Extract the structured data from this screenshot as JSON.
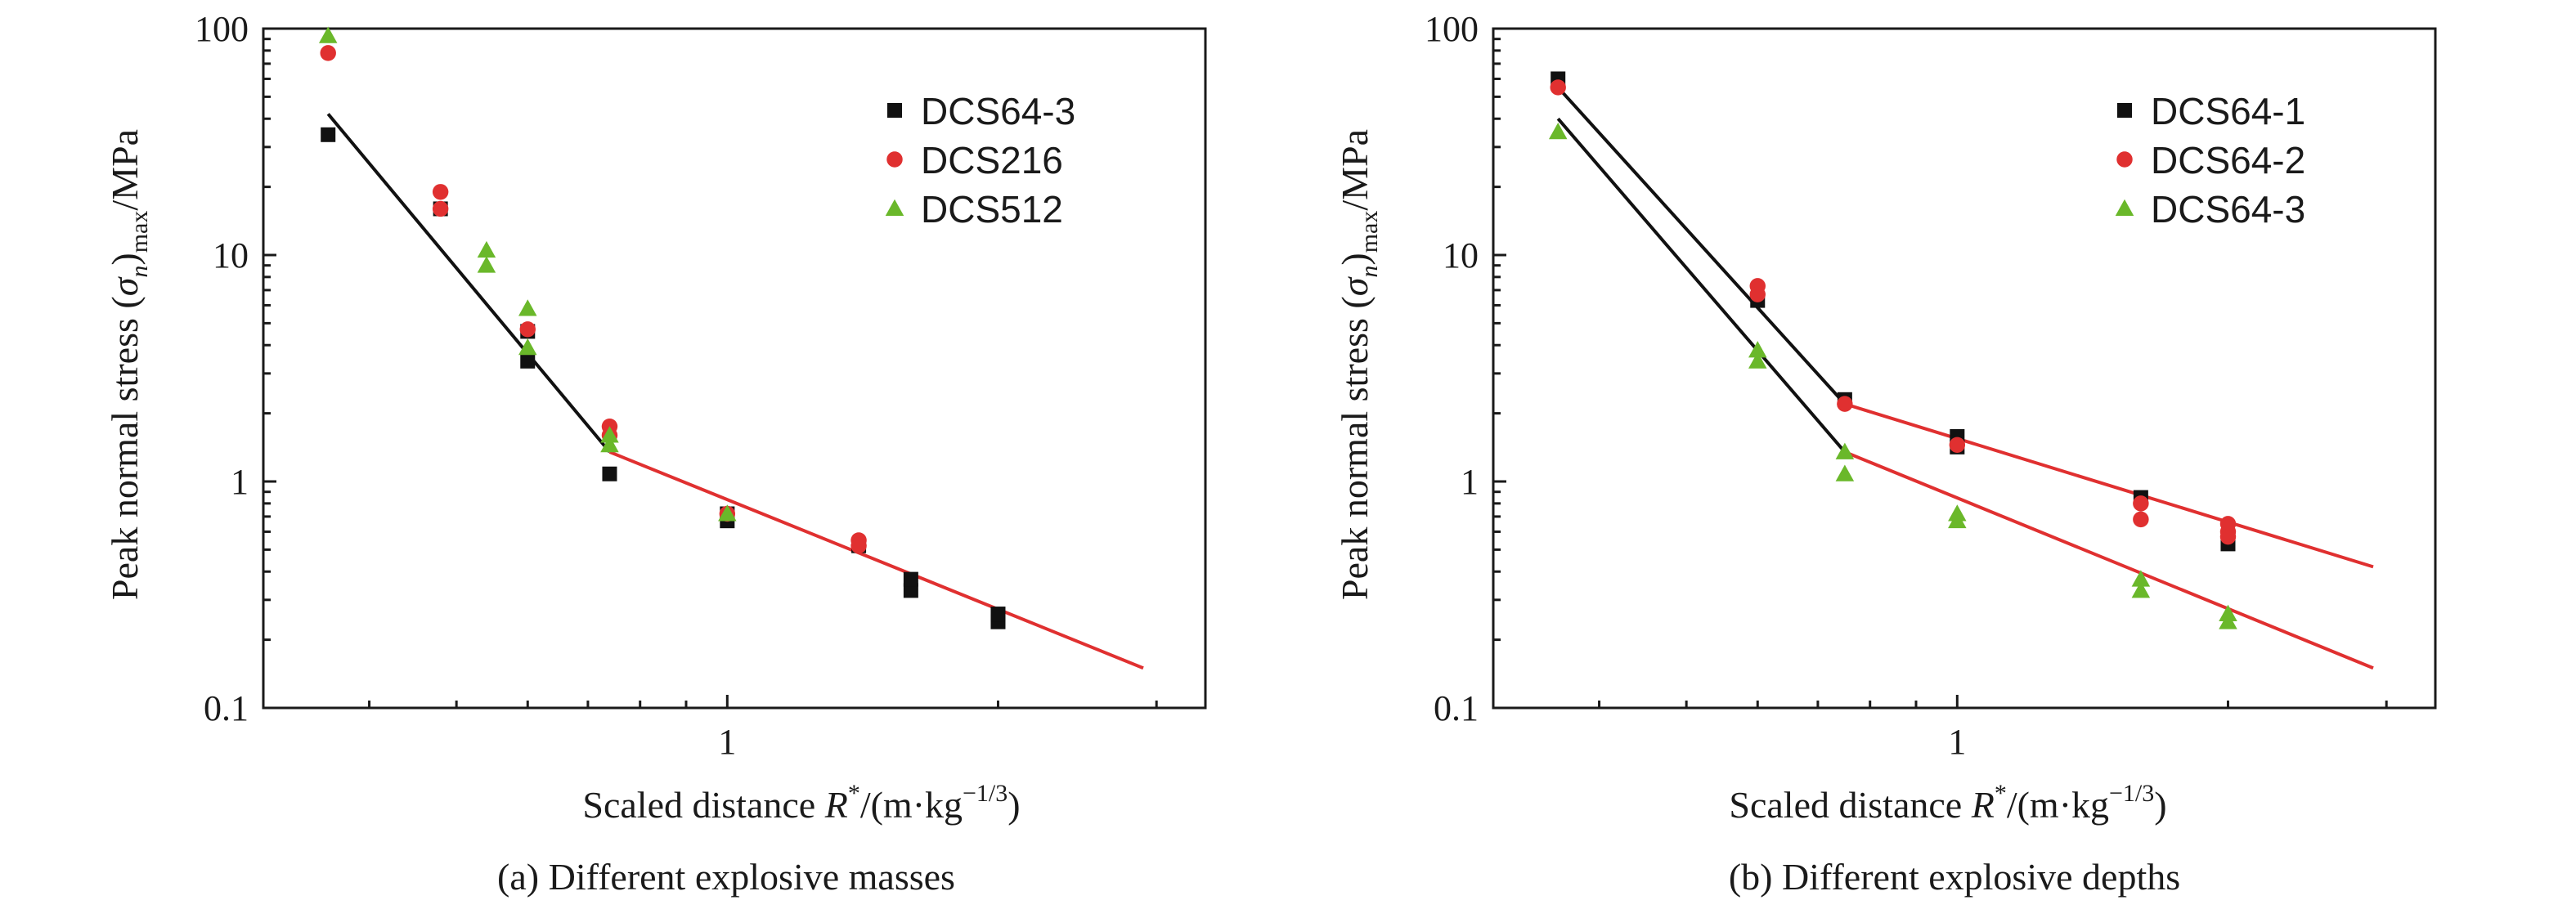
{
  "chart_data": [
    {
      "type": "scatter",
      "caption": "(a) Different explosive masses",
      "xlabel_prefix": "Scaled distance ",
      "xlabel_var": "R",
      "xlabel_sup": "*",
      "xlabel_unit": "/(m·kg",
      "xlabel_unit_exp": "−1/3",
      "xlabel_close": ")",
      "ylabel_prefix": "Peak normal stress (",
      "ylabel_sigma": "σ",
      "ylabel_sub_n": "n",
      "ylabel_close": ")",
      "ylabel_sub_max": "max",
      "ylabel_unit": "/MPa",
      "x_scale": "log",
      "y_scale": "log",
      "xlim": [
        0.305,
        3.4
      ],
      "ylim": [
        0.1,
        100
      ],
      "x_tick_labels": [
        {
          "value": 1,
          "label": "1"
        }
      ],
      "y_tick_labels": [
        {
          "value": 0.1,
          "label": "0.1"
        },
        {
          "value": 1,
          "label": "1"
        },
        {
          "value": 10,
          "label": "10"
        },
        {
          "value": 100,
          "label": "100"
        }
      ],
      "legend_position": "top-right",
      "series": [
        {
          "name": "DCS64-3",
          "marker": "square",
          "color": "#111111",
          "points": [
            [
              0.36,
              34
            ],
            [
              0.48,
              16
            ],
            [
              0.6,
              4.6
            ],
            [
              0.6,
              3.4
            ],
            [
              0.74,
              1.08
            ],
            [
              1.0,
              0.67
            ],
            [
              1.0,
              0.72
            ],
            [
              1.4,
              0.52
            ],
            [
              1.6,
              0.33
            ],
            [
              1.6,
              0.37
            ],
            [
              2.0,
              0.24
            ],
            [
              2.0,
              0.26
            ]
          ]
        },
        {
          "name": "DCS216",
          "marker": "circle",
          "color": "#e03030",
          "points": [
            [
              0.36,
              78
            ],
            [
              0.48,
              19
            ],
            [
              0.48,
              16
            ],
            [
              0.6,
              4.7
            ],
            [
              0.74,
              1.75
            ],
            [
              0.74,
              1.6
            ],
            [
              1.0,
              0.72
            ],
            [
              1.4,
              0.55
            ],
            [
              1.4,
              0.52
            ]
          ]
        },
        {
          "name": "DCS512",
          "marker": "triangle",
          "color": "#6ab82a",
          "points": [
            [
              0.36,
              93
            ],
            [
              0.54,
              10.5
            ],
            [
              0.54,
              9
            ],
            [
              0.6,
              5.8
            ],
            [
              0.6,
              3.9
            ],
            [
              0.74,
              1.6
            ],
            [
              0.74,
              1.45
            ],
            [
              1.0,
              0.72
            ]
          ]
        }
      ],
      "fit_lines": [
        {
          "color": "#111111",
          "points": [
            [
              0.36,
              42
            ],
            [
              0.74,
              1.35
            ]
          ]
        },
        {
          "color": "#e03030",
          "points": [
            [
              0.74,
              1.35
            ],
            [
              2.9,
              0.15
            ]
          ]
        }
      ]
    },
    {
      "type": "scatter",
      "caption": "(b) Different explosive depths",
      "xlabel_prefix": "Scaled distance ",
      "xlabel_var": "R",
      "xlabel_sup": "*",
      "xlabel_unit": "/(m·kg",
      "xlabel_unit_exp": "−1/3",
      "xlabel_close": ")",
      "ylabel_prefix": "Peak normal stress (",
      "ylabel_sigma": "σ",
      "ylabel_sub_n": "n",
      "ylabel_close": ")",
      "ylabel_sub_max": "max",
      "ylabel_unit": "/MPa",
      "x_scale": "log",
      "y_scale": "log",
      "xlim": [
        0.305,
        3.4
      ],
      "ylim": [
        0.1,
        100
      ],
      "x_tick_labels": [
        {
          "value": 1,
          "label": "1"
        }
      ],
      "y_tick_labels": [
        {
          "value": 0.1,
          "label": "0.1"
        },
        {
          "value": 1,
          "label": "1"
        },
        {
          "value": 10,
          "label": "10"
        },
        {
          "value": 100,
          "label": "100"
        }
      ],
      "legend_position": "top-right",
      "series": [
        {
          "name": "DCS64-1",
          "marker": "square",
          "color": "#111111",
          "points": [
            [
              0.36,
              60
            ],
            [
              0.6,
              6.3
            ],
            [
              0.75,
              2.3
            ],
            [
              1.0,
              1.58
            ],
            [
              1.0,
              1.42
            ],
            [
              1.6,
              0.85
            ],
            [
              2.0,
              0.53
            ]
          ]
        },
        {
          "name": "DCS64-2",
          "marker": "circle",
          "color": "#e03030",
          "points": [
            [
              0.36,
              55
            ],
            [
              0.6,
              7.3
            ],
            [
              0.6,
              6.7
            ],
            [
              0.75,
              2.2
            ],
            [
              1.0,
              1.45
            ],
            [
              1.6,
              0.8
            ],
            [
              1.6,
              0.68
            ],
            [
              2.0,
              0.65
            ],
            [
              2.0,
              0.6
            ],
            [
              2.0,
              0.57
            ]
          ]
        },
        {
          "name": "DCS64-3",
          "marker": "triangle",
          "color": "#6ab82a",
          "points": [
            [
              0.36,
              35
            ],
            [
              0.6,
              3.8
            ],
            [
              0.6,
              3.4
            ],
            [
              0.75,
              1.35
            ],
            [
              0.75,
              1.08
            ],
            [
              1.0,
              0.72
            ],
            [
              1.0,
              0.67
            ],
            [
              1.6,
              0.37
            ],
            [
              1.6,
              0.33
            ],
            [
              2.0,
              0.26
            ],
            [
              2.0,
              0.24
            ]
          ]
        }
      ],
      "fit_lines": [
        {
          "color": "#111111",
          "points": [
            [
              0.36,
              55
            ],
            [
              0.75,
              2.2
            ]
          ]
        },
        {
          "color": "#111111",
          "points": [
            [
              0.36,
              40
            ],
            [
              0.75,
              1.35
            ]
          ]
        },
        {
          "color": "#e03030",
          "points": [
            [
              0.75,
              2.2
            ],
            [
              2.9,
              0.42
            ]
          ]
        },
        {
          "color": "#e03030",
          "points": [
            [
              0.75,
              1.35
            ],
            [
              2.9,
              0.15
            ]
          ]
        }
      ]
    }
  ]
}
